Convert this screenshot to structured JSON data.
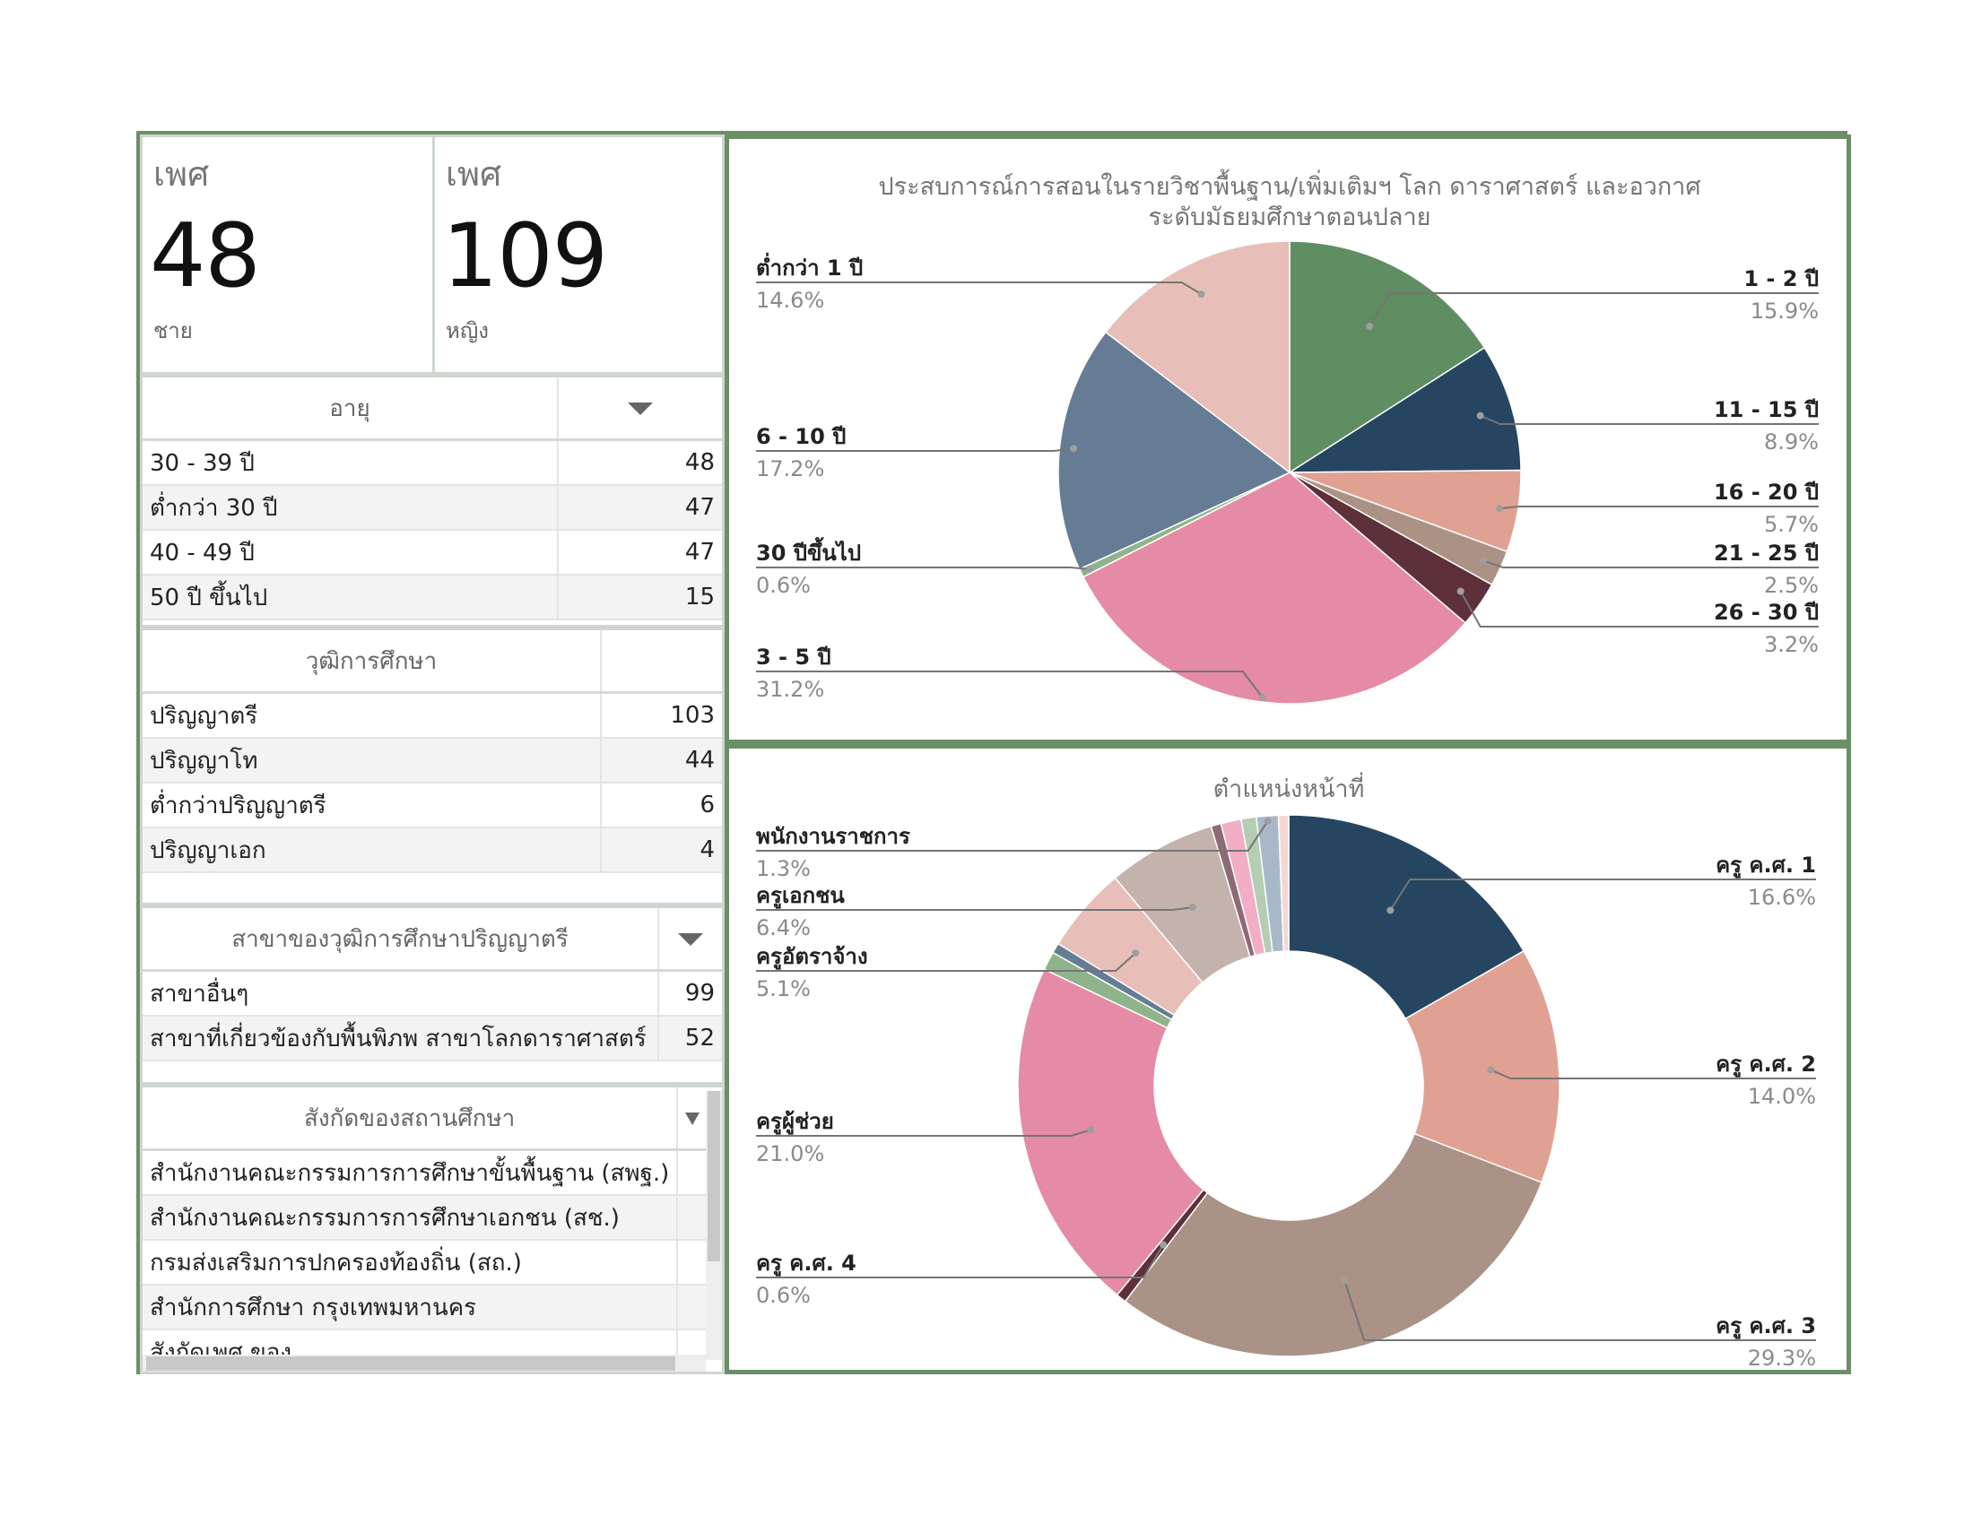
{
  "kpi": [
    {
      "label": "เพศ",
      "value": "48",
      "sub": "ชาย"
    },
    {
      "label": "เพศ",
      "value": "109",
      "sub": "หญิง"
    }
  ],
  "age_table": {
    "header": "อายุ",
    "rows": [
      {
        "label": "30 - 39 ปี",
        "value": "48"
      },
      {
        "label": "ต่ำกว่า 30 ปี",
        "value": "47"
      },
      {
        "label": "40 - 49 ปี",
        "value": "47"
      },
      {
        "label": "50 ปี ขึ้นไป",
        "value": "15"
      }
    ]
  },
  "edu_table": {
    "header": "วุฒิการศึกษา",
    "rows": [
      {
        "label": "ปริญญาตรี",
        "value": "103"
      },
      {
        "label": "ปริญญาโท",
        "value": "44"
      },
      {
        "label": "ต่ำกว่าปริญญาตรี",
        "value": "6"
      },
      {
        "label": "ปริญญาเอก",
        "value": "4"
      }
    ]
  },
  "major_table": {
    "header": "สาขาของวุฒิการศึกษาปริญญาตรี",
    "rows": [
      {
        "label": "สาขาอื่นๆ",
        "value": "99"
      },
      {
        "label": "สาขาที่เกี่ยวข้องกับพื้นพิภพ สาขาโลกดาราศาสตร์",
        "value": "52"
      }
    ]
  },
  "affil_table": {
    "header": "สังกัดของสถานศึกษา",
    "rows": [
      {
        "label": "สำนักงานคณะกรรมการการศึกษาขั้นพื้นฐาน (สพฐ.)"
      },
      {
        "label": "สำนักงานคณะกรรมการการศึกษาเอกชน (สช.)"
      },
      {
        "label": "กรมส่งเสริมการปกครองท้องถิ่น (สถ.)"
      },
      {
        "label": "สำนักการศึกษา กรุงเทพมหานคร"
      },
      {
        "label": "สังกัดเพศ ของ"
      }
    ]
  },
  "chart_data": [
    {
      "type": "pie",
      "title": "ประสบการณ์การสอนในรายวิชาพื้นฐาน/เพิ่มเติมฯ โลก ดาราศาสตร์ และอวกาศ ระดับมัธยมศึกษาตอนปลาย",
      "title_lines": [
        "ประสบการณ์การสอนในรายวิชาพื้นฐาน/เพิ่มเติมฯ โลก ดาราศาสตร์ และอวกาศ",
        "ระดับมัธยมศึกษาตอนปลาย"
      ],
      "slices": [
        {
          "label": "1 - 2 ปี",
          "value": 15.9,
          "pct": "15.9%",
          "color": "#5f8e62"
        },
        {
          "label": "11 - 15 ปี",
          "value": 8.9,
          "pct": "8.9%",
          "color": "#264561"
        },
        {
          "label": "16 - 20 ปี",
          "value": 5.7,
          "pct": "5.7%",
          "color": "#e0a193"
        },
        {
          "label": "21 - 25 ปี",
          "value": 2.5,
          "pct": "2.5%",
          "color": "#ab9284"
        },
        {
          "label": "26 - 30 ปี",
          "value": 3.2,
          "pct": "3.2%",
          "color": "#5e3039"
        },
        {
          "label": "3 - 5 ปี",
          "value": 31.2,
          "pct": "31.2%",
          "color": "#e58ba5"
        },
        {
          "label": "30 ปีขึ้นไป",
          "value": 0.6,
          "pct": "0.6%",
          "color": "#8fb48c"
        },
        {
          "label": "6 - 10 ปี",
          "value": 17.2,
          "pct": "17.2%",
          "color": "#657c94"
        },
        {
          "label": "ต่ำกว่า 1 ปี",
          "value": 14.6,
          "pct": "14.6%",
          "color": "#e7bfb8"
        }
      ]
    },
    {
      "type": "pie",
      "donut": true,
      "title": "ตำแหน่งหน้าที่",
      "slices": [
        {
          "label": "ครู ค.ศ. 1",
          "value": 16.6,
          "pct": "16.6%",
          "color": "#264561"
        },
        {
          "label": "ครู ค.ศ. 2",
          "value": 14.0,
          "pct": "14.0%",
          "color": "#e0a193"
        },
        {
          "label": "ครู ค.ศ. 3",
          "value": 29.3,
          "pct": "29.3%",
          "color": "#ab9286"
        },
        {
          "label": "ครู ค.ศ. 4",
          "value": 0.6,
          "pct": "0.6%",
          "color": "#5e3039"
        },
        {
          "label": "ครูผู้ช่วย",
          "value": 21.0,
          "pct": "21.0%",
          "color": "#e58ba5"
        },
        {
          "label": "",
          "value": 1.1,
          "color": "#8fb48c"
        },
        {
          "label": "",
          "value": 0.6,
          "color": "#657c94"
        },
        {
          "label": "ครูอัตราจ้าง",
          "value": 5.1,
          "pct": "5.1%",
          "color": "#e7bfb8"
        },
        {
          "label": "ครูเอกชน",
          "value": 6.4,
          "pct": "6.4%",
          "color": "#c4b2ac"
        },
        {
          "label": "",
          "value": 0.6,
          "color": "#8e6a76"
        },
        {
          "label": "",
          "value": 1.2,
          "color": "#f2aec4"
        },
        {
          "label": "",
          "value": 0.9,
          "color": "#b5cdb2"
        },
        {
          "label": "พนักงานราชการ",
          "value": 1.3,
          "pct": "1.3%",
          "color": "#a9b8c9"
        },
        {
          "label": "",
          "value": 0.6,
          "color": "#f4d7d4"
        }
      ]
    }
  ]
}
